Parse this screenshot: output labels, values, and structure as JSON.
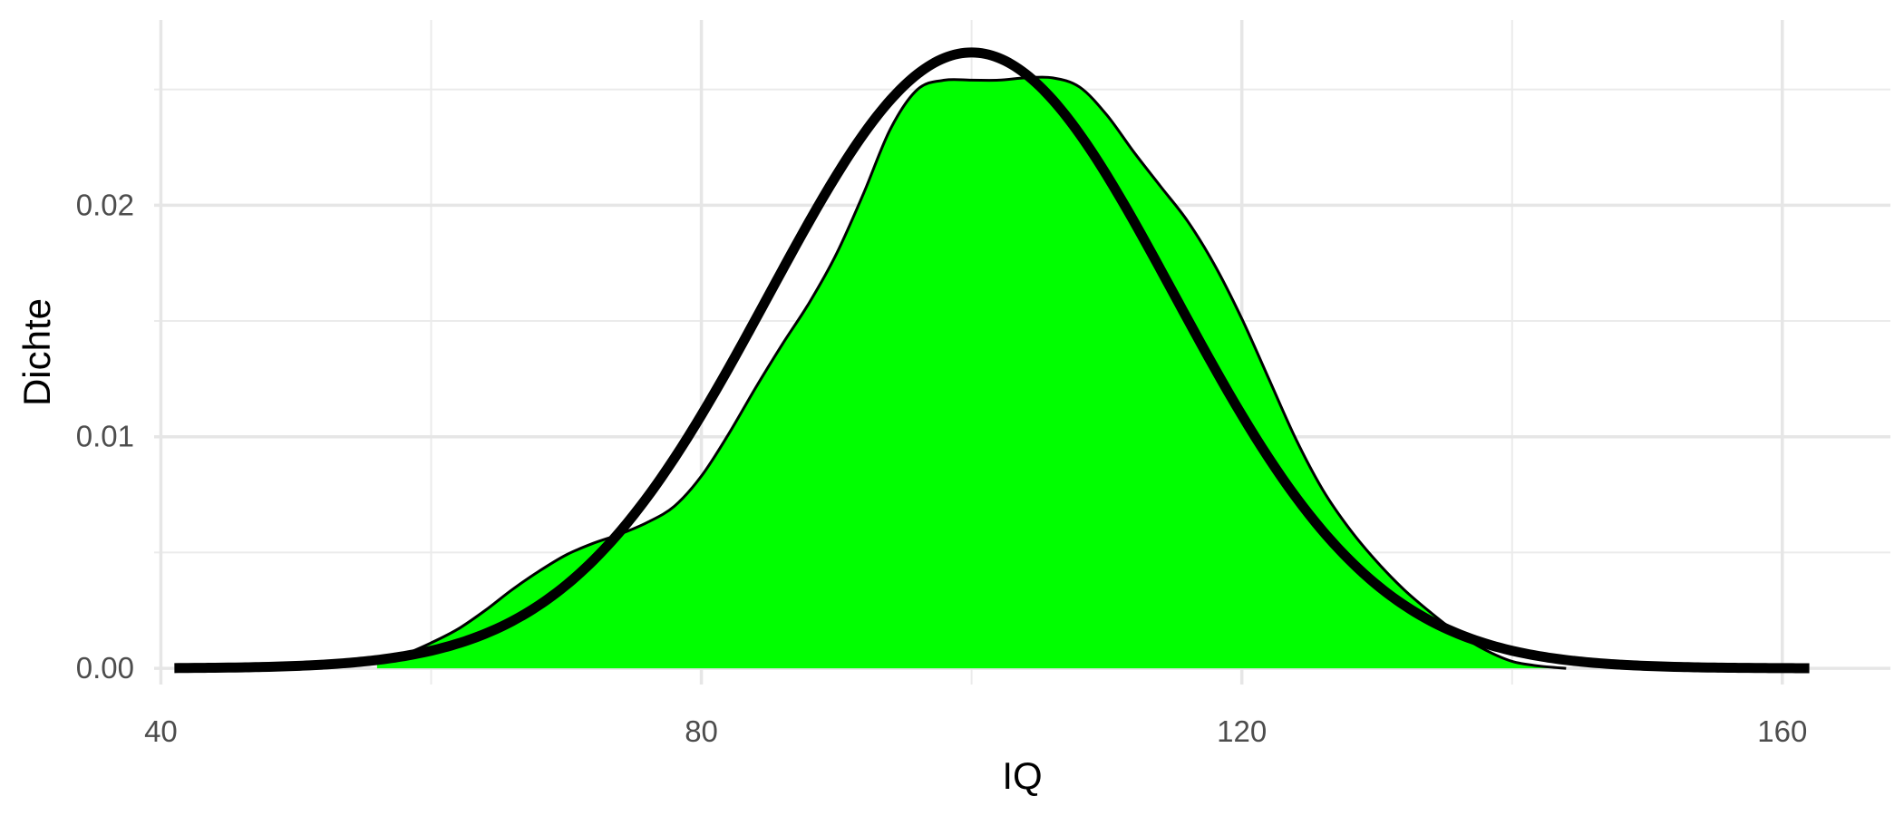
{
  "chart_data": {
    "type": "area",
    "title": "",
    "xlabel": "IQ",
    "ylabel": "Dichte",
    "xlim": [
      39.5,
      168
    ],
    "ylim": [
      -0.0007,
      0.028
    ],
    "x_ticks": [
      40,
      80,
      120,
      160
    ],
    "x_tick_labels": [
      "40",
      "80",
      "120",
      "160"
    ],
    "y_ticks": [
      0.0,
      0.01,
      0.02
    ],
    "y_tick_labels": [
      "0.00",
      "0.01",
      "0.02"
    ],
    "x_minor_ticks": [
      60,
      100,
      140
    ],
    "y_minor_ticks": [
      0.005,
      0.015,
      0.025
    ],
    "grid": true,
    "legend": "none",
    "series": [
      {
        "kind": "filled-density",
        "fill_color": "#00ff00",
        "line_color": "#000000",
        "points": [
          [
            56,
            0.0003
          ],
          [
            58,
            0.0006
          ],
          [
            60,
            0.0011
          ],
          [
            62,
            0.0017
          ],
          [
            64,
            0.0025
          ],
          [
            66,
            0.0034
          ],
          [
            68,
            0.0042
          ],
          [
            70,
            0.0049
          ],
          [
            72,
            0.0054
          ],
          [
            74,
            0.0058
          ],
          [
            76,
            0.0063
          ],
          [
            78,
            0.007
          ],
          [
            80,
            0.0083
          ],
          [
            82,
            0.0101
          ],
          [
            84,
            0.0121
          ],
          [
            86,
            0.014
          ],
          [
            88,
            0.0158
          ],
          [
            90,
            0.0179
          ],
          [
            92,
            0.0205
          ],
          [
            94,
            0.0233
          ],
          [
            96,
            0.025
          ],
          [
            98,
            0.0254
          ],
          [
            100,
            0.0254
          ],
          [
            102,
            0.0254
          ],
          [
            104,
            0.0255
          ],
          [
            106,
            0.0255
          ],
          [
            108,
            0.0251
          ],
          [
            110,
            0.0239
          ],
          [
            112,
            0.0223
          ],
          [
            114,
            0.0208
          ],
          [
            116,
            0.0193
          ],
          [
            118,
            0.0174
          ],
          [
            120,
            0.0151
          ],
          [
            122,
            0.0125
          ],
          [
            124,
            0.0099
          ],
          [
            126,
            0.0077
          ],
          [
            128,
            0.006
          ],
          [
            130,
            0.0046
          ],
          [
            132,
            0.0034
          ],
          [
            134,
            0.0024
          ],
          [
            136,
            0.0015
          ],
          [
            138,
            0.0008
          ],
          [
            140,
            0.0003
          ],
          [
            142,
            0.0001
          ],
          [
            144,
            0.0
          ]
        ]
      },
      {
        "kind": "normal-curve",
        "line_color": "#000000",
        "mean": 100,
        "sd": 15,
        "x_range": [
          41,
          162
        ]
      }
    ]
  }
}
